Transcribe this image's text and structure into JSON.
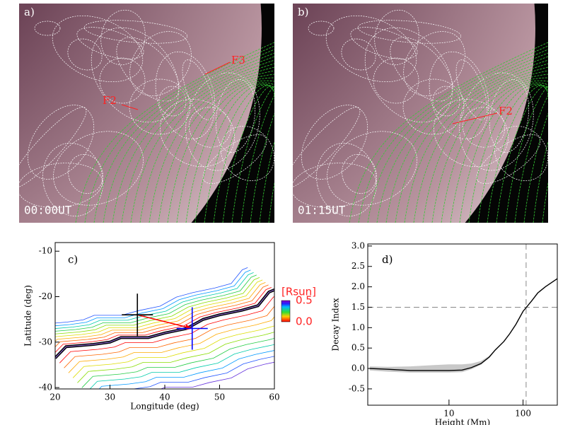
{
  "panels": {
    "a": {
      "label": "a)",
      "features": [
        "F3",
        "F2"
      ],
      "time": "00:00UT"
    },
    "b": {
      "label": "b)",
      "features": [
        "F2"
      ],
      "time": "01:15UT"
    }
  },
  "chart_data": [
    {
      "type": "contour",
      "label": "c)",
      "xlabel": "Longitude (deg)",
      "ylabel": "Latitude (deg)",
      "xlim": [
        20,
        60
      ],
      "xticks": [
        20,
        30,
        40,
        50,
        60
      ],
      "ylim": [
        -40.3,
        -8.1
      ],
      "yticks": [
        -10,
        -20,
        -30,
        -40
      ],
      "markers": [
        {
          "x": 35,
          "y": -24,
          "color": "#000000"
        },
        {
          "x": 45,
          "y": -27,
          "color": "#0000ff"
        }
      ],
      "arrow_color": "#ff0000",
      "line": {
        "x": [
          20,
          22,
          27,
          30,
          32,
          34,
          37,
          40,
          44,
          47,
          50,
          54,
          57,
          59,
          60
        ],
        "y": [
          -33.5,
          -31,
          -30.5,
          -30,
          -29,
          -29,
          -29,
          -28,
          -27,
          -25,
          -24,
          -23,
          -22,
          -19,
          -18.5
        ]
      },
      "colorbar": {
        "label": "[Rsun]",
        "lim": [
          0,
          0.5
        ],
        "ticks": [
          0.5,
          {
            "value": 0,
            "label": "0.0"
          }
        ]
      }
    },
    {
      "type": "line",
      "label": "d)",
      "xlabel": "Height (Mm)",
      "ylabel": "Decay Index",
      "log_x": true,
      "xlim": [
        0.8,
        290
      ],
      "xticks": [
        10,
        100
      ],
      "ylim": [
        -0.9,
        3.05
      ],
      "yticks": [
        {
          "value": 3,
          "label": "3.0"
        },
        2.5,
        {
          "value": 2,
          "label": "2.0"
        },
        1.5,
        {
          "value": 1,
          "label": "1.0"
        },
        0.5,
        {
          "value": 0,
          "label": "0.0"
        },
        -0.5
      ],
      "x": [
        0.85,
        1.5,
        3,
        6,
        10,
        15,
        20,
        27,
        35,
        42,
        55,
        66,
        80,
        100,
        130,
        158,
        200,
        290
      ],
      "values": [
        0.0,
        -0.02,
        -0.05,
        -0.05,
        -0.05,
        -0.04,
        0.02,
        0.12,
        0.28,
        0.45,
        0.66,
        0.85,
        1.08,
        1.4,
        1.65,
        1.85,
        2.0,
        2.2
      ],
      "band_low": [
        -0.05,
        -0.08,
        -0.1,
        -0.1,
        -0.1,
        -0.09,
        -0.02,
        0.09,
        0.26,
        0.44,
        0.65,
        0.84,
        1.07,
        1.39,
        1.64,
        1.84,
        1.99,
        2.19
      ],
      "band_high": [
        0.05,
        0.04,
        0.05,
        0.08,
        0.1,
        0.1,
        0.12,
        0.18,
        0.31,
        0.47,
        0.67,
        0.86,
        1.09,
        1.41,
        1.66,
        1.86,
        2.01,
        2.21
      ],
      "color": "#000000",
      "band_color": "#c8c8c8",
      "reference_y": 1.5,
      "reference_x": 110
    }
  ]
}
